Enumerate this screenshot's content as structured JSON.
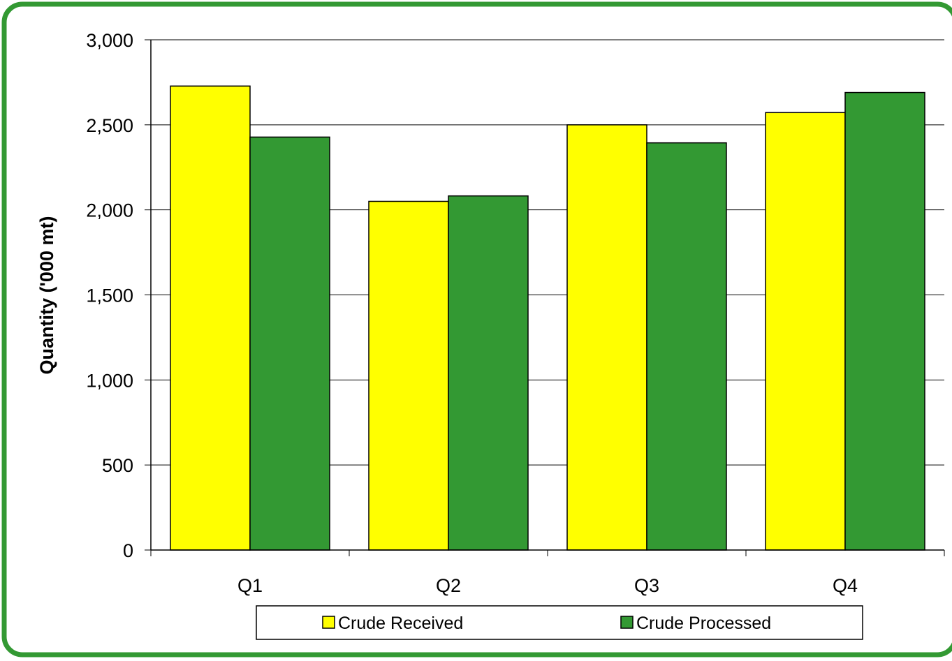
{
  "chart_data": {
    "type": "bar",
    "title": "",
    "xlabel": "",
    "ylabel": "Quantity ('000 mt)",
    "categories": [
      "Q1",
      "Q2",
      "Q3",
      "Q4"
    ],
    "series": [
      {
        "name": "Crude Received",
        "values": [
          2728,
          2050,
          2500,
          2572
        ],
        "color": "#ffff00"
      },
      {
        "name": "Crude Processed",
        "values": [
          2428,
          2082,
          2394,
          2690
        ],
        "color": "#339933"
      }
    ],
    "ylim": [
      0,
      3000
    ],
    "yticks": [
      0,
      500,
      1000,
      1500,
      2000,
      2500,
      3000
    ],
    "ytick_labels": [
      "0",
      "500",
      "1,000",
      "1,500",
      "2,000",
      "2,500",
      "3,000"
    ],
    "grid": "horizontal",
    "legend_position": "bottom",
    "frame_color": "#339933"
  }
}
